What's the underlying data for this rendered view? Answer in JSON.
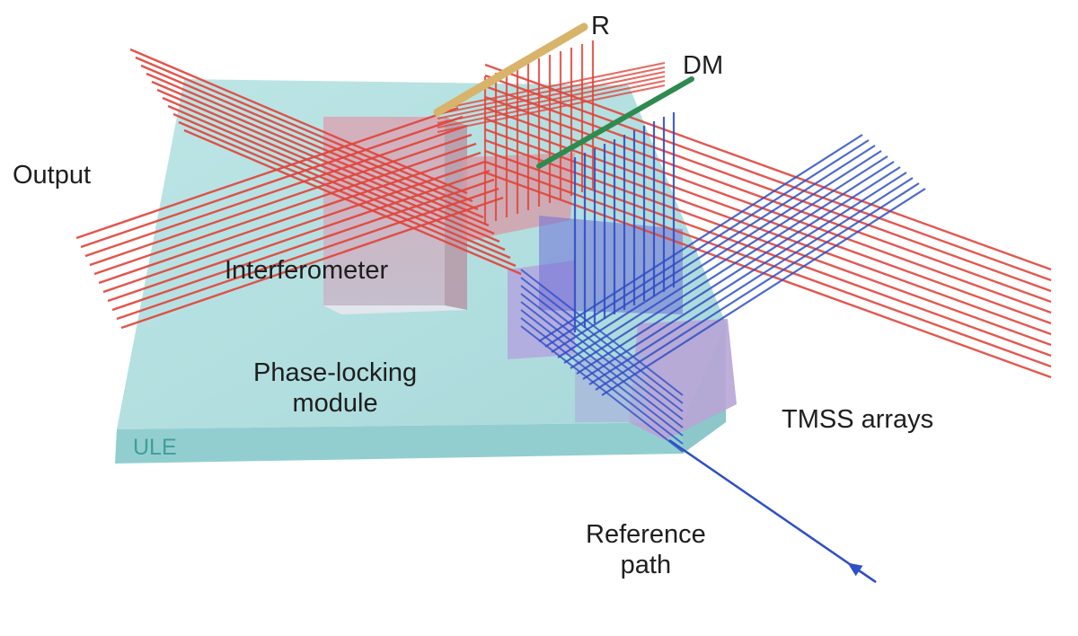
{
  "labels": {
    "r": "R",
    "dm": "DM",
    "output": "Output",
    "interferometer": "Interferometer",
    "phase_locking_line1": "Phase-locking",
    "phase_locking_line2": "module",
    "tmss": "TMSS arrays",
    "ule": "ULE",
    "reference_line1": "Reference",
    "reference_line2": "path"
  },
  "colors": {
    "red_beam": "#e2453b",
    "blue_beam": "#2f4fc6",
    "plate": "#a9dcdc",
    "mirror_r": "#d7b46a",
    "mirror_dm": "#2f8a50",
    "text": "#1e1e1e",
    "ule_text": "#3f9f9a"
  }
}
